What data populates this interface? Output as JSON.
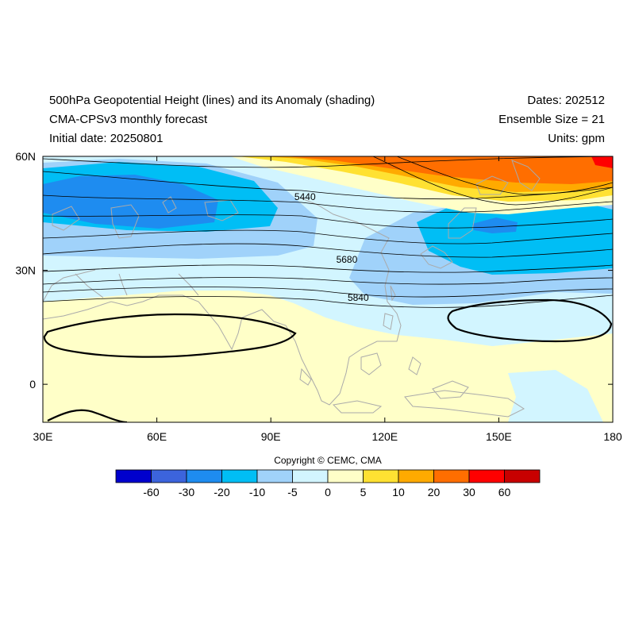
{
  "header": {
    "title": "500hPa Geopotential Height (lines) and its Anomaly (shading)",
    "model": "CMA-CPSv3 monthly forecast",
    "initial_date": "Initial date: 20250801",
    "dates": "Dates: 202512",
    "ensemble_size": "Ensemble Size = 21",
    "units": "Units: gpm"
  },
  "copyright": "Copyright © CEMC, CMA",
  "map": {
    "lon_range": [
      30,
      180
    ],
    "lat_range": [
      -10,
      60
    ],
    "lon_ticks": [
      {
        "value": 30,
        "label": "30E"
      },
      {
        "value": 60,
        "label": "60E"
      },
      {
        "value": 90,
        "label": "90E"
      },
      {
        "value": 120,
        "label": "120E"
      },
      {
        "value": 150,
        "label": "150E"
      },
      {
        "value": 180,
        "label": "180"
      }
    ],
    "lat_ticks": [
      {
        "value": 60,
        "label": "60N"
      },
      {
        "value": 30,
        "label": "30N"
      },
      {
        "value": 0,
        "label": "0"
      }
    ],
    "contour_labels": [
      {
        "text": "5440",
        "lon": 99,
        "lat": 48.5
      },
      {
        "text": "5680",
        "lon": 110,
        "lat": 32
      },
      {
        "text": "5840",
        "lon": 113,
        "lat": 22
      }
    ]
  },
  "colorbar": {
    "colors": [
      "#0000cd",
      "#3c64dc",
      "#1e8cf0",
      "#00bef5",
      "#a0d2fa",
      "#d2f5ff",
      "#ffffc8",
      "#ffe132",
      "#ffaa00",
      "#ff6e00",
      "#ff0000",
      "#c80000"
    ],
    "labels": [
      "-60",
      "-30",
      "-20",
      "-10",
      "-5",
      "0",
      "5",
      "10",
      "20",
      "30",
      "60"
    ]
  }
}
